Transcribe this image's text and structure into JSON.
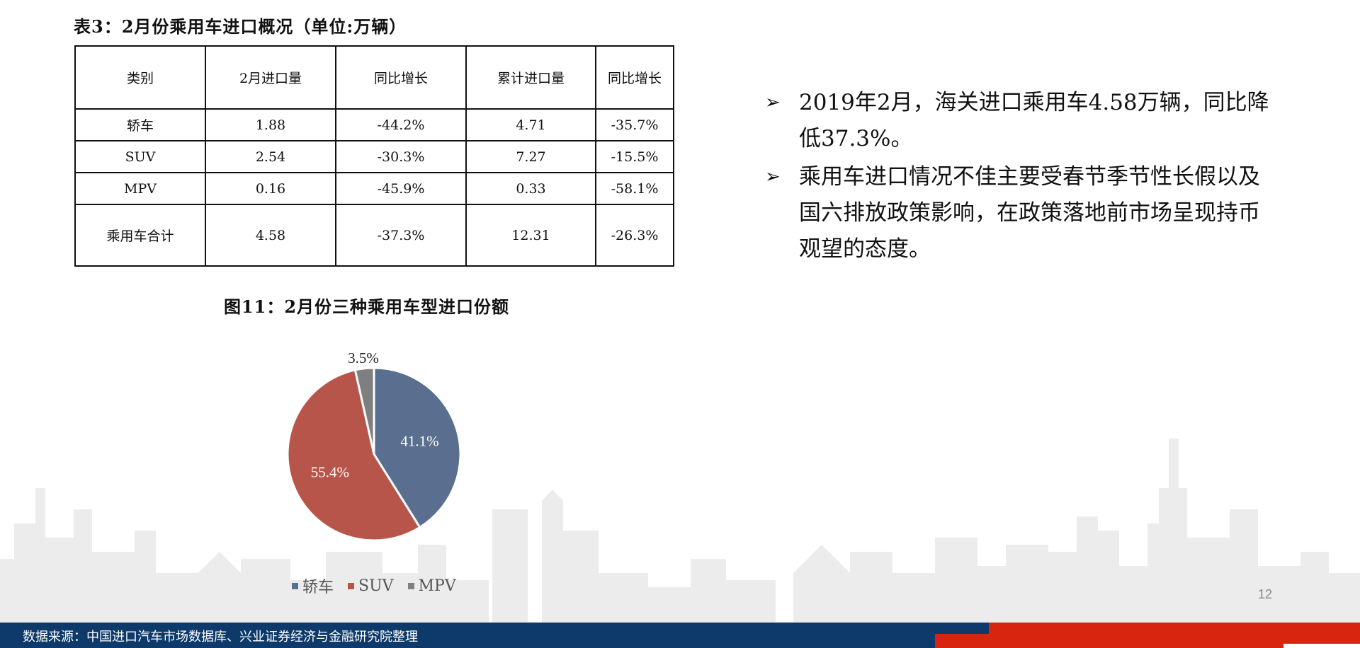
{
  "table": {
    "title": "表3：2月份乘用车进口概况（单位:万辆）",
    "headers": [
      "类别",
      "2月进口量",
      "同比增长",
      "累计进口量",
      "同比增长"
    ],
    "rows": [
      [
        "轿车",
        "1.88",
        "-44.2%",
        "4.71",
        "-35.7%"
      ],
      [
        "SUV",
        "2.54",
        "-30.3%",
        "7.27",
        "-15.5%"
      ],
      [
        "MPV",
        "0.16",
        "-45.9%",
        "0.33",
        "-58.1%"
      ],
      [
        "乘用车合计",
        "4.58",
        "-37.3%",
        "12.31",
        "-26.3%"
      ]
    ]
  },
  "figure": {
    "title": "图11：2月份三种乘用车型进口份额"
  },
  "chart_data": {
    "type": "pie",
    "title": "图11：2月份三种乘用车型进口份额",
    "categories": [
      "轿车",
      "SUV",
      "MPV"
    ],
    "values": [
      41.1,
      55.4,
      3.5
    ],
    "labels": [
      "41.1%",
      "55.4%",
      "3.5%"
    ],
    "colors": [
      "#5a6f8f",
      "#b8554b",
      "#7f7f7f"
    ],
    "legend": "bottom"
  },
  "bullets": [
    "2019年2月，海关进口乘用车4.58万辆，同比降低37.3%。",
    "乘用车进口情况不佳主要受春节季节性长假以及国六排放政策影响，在政策落地前市场呈现持币观望的态度。"
  ],
  "bullet_icon": "arrow-right-icon",
  "page_number": "12",
  "footer": {
    "source": "数据来源：中国进口汽车市场数据库、兴业证券经济与金融研究院整理"
  }
}
